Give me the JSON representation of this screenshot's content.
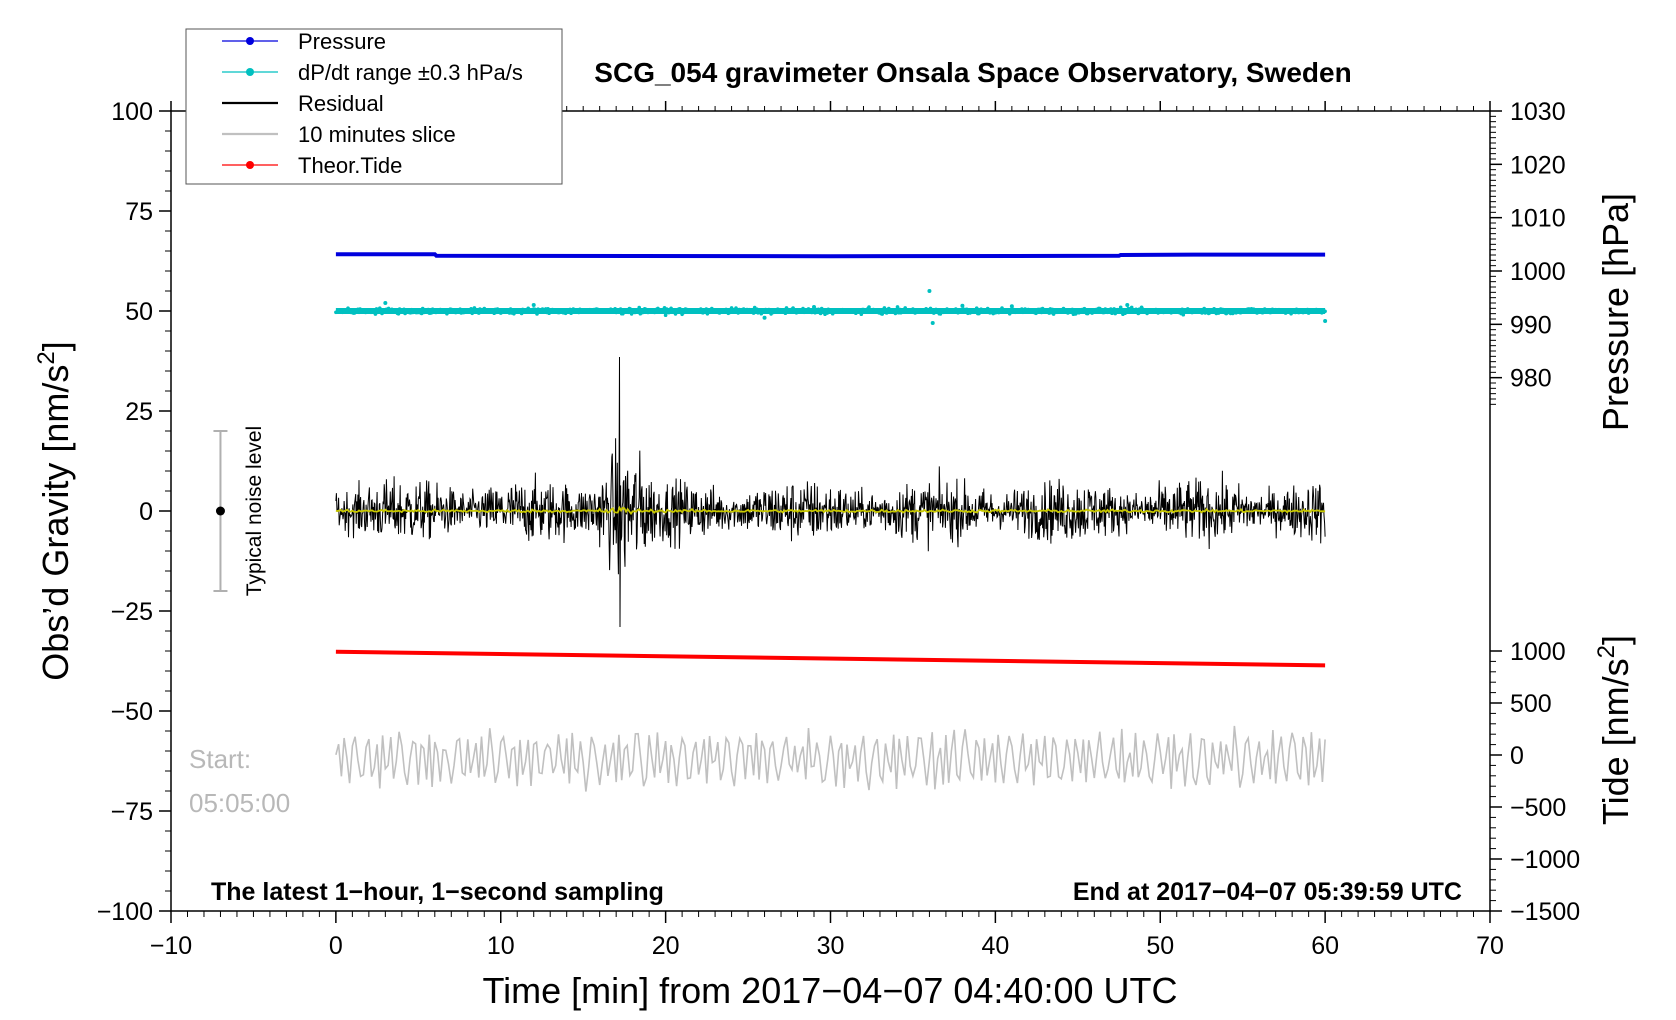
{
  "chart_data": {
    "type": "line",
    "title": "SCG_054 gravimeter Onsala Space Observatory, Sweden",
    "xlabel_prefix": "Time [min] from ",
    "xlabel_time": "2017−04−07 04:40:00 UTC",
    "ylabel_left": "Obs’d Gravity [nm/s",
    "ylabel_right_pressure": "Pressure [hPa]",
    "ylabel_right_tide": "Tide [nm/s",
    "unit_superscript": "2",
    "unit_close": "]",
    "xlim": [
      -10,
      70
    ],
    "ylim": [
      -100,
      100
    ],
    "x_ticks": [
      -10,
      0,
      10,
      20,
      30,
      40,
      50,
      60,
      70
    ],
    "x_tick_labels": [
      "−10",
      "0",
      "10",
      "20",
      "30",
      "40",
      "50",
      "60",
      "70"
    ],
    "y_ticks": [
      100,
      75,
      50,
      25,
      0,
      -25,
      -50,
      -75,
      -100
    ],
    "y_tick_labels": [
      "100",
      "75",
      "50",
      "25",
      "0",
      "−25",
      "−50",
      "−75",
      "−100"
    ],
    "pressure_axis": {
      "ticks": [
        1030,
        1020,
        1010,
        1000,
        990,
        980
      ],
      "tick_labels": [
        "1030",
        "1020",
        "1010",
        "1000",
        "990",
        "980"
      ],
      "top_value": 1030,
      "bottom_value": 970,
      "maps_to_left": [
        100,
        20
      ]
    },
    "tide_axis": {
      "ticks": [
        1000,
        500,
        0,
        -500,
        -1000,
        -1500
      ],
      "tick_labels": [
        "1000",
        "500",
        "0",
        "−500",
        "−1000",
        "−1500"
      ],
      "maps_to_left": [
        -35,
        -100
      ],
      "range": [
        1000,
        -1500
      ]
    },
    "series": [
      {
        "name": "Pressure",
        "color": "#0000dd",
        "x": [
          0,
          6,
          6.1,
          30,
          47.5,
          47.6,
          52,
          60
        ],
        "y": [
          64.2,
          64.2,
          63.8,
          63.7,
          63.8,
          64.0,
          64.1,
          64.1
        ]
      },
      {
        "name": "dP/dt range ±0.3 hPa/s",
        "color": "#00c0c0",
        "center": 50,
        "spread": 1.2
      },
      {
        "name": "Residual",
        "color": "#000000",
        "center": 0,
        "typical_amplitude": 6,
        "event_at_min": 17.2,
        "event_max": 38.5,
        "event_min": -29
      },
      {
        "name": "10 minutes slice",
        "color": "#c0c0c0",
        "center": -62,
        "amplitude": 8
      },
      {
        "name": "Theor.Tide",
        "color": "#ff0000",
        "x": [
          0,
          60
        ],
        "y": [
          -35.2,
          -38.6
        ]
      }
    ],
    "smoothed_residual_color": "#c8c800",
    "legend": [
      {
        "label": "Pressure",
        "color": "#0000dd",
        "marker": true
      },
      {
        "label": "dP/dt range ±0.3 hPa/s",
        "color": "#00c0c0",
        "marker": true
      },
      {
        "label": "Residual",
        "color": "#000000",
        "marker": false
      },
      {
        "label": "10 minutes slice",
        "color": "#c0c0c0",
        "marker": false
      },
      {
        "label": "Theor.Tide",
        "color": "#ff0000",
        "marker": true
      }
    ],
    "noise_level": {
      "label": "Typical noise level",
      "x": -7,
      "center": 0,
      "upper": 20,
      "lower": -20
    },
    "start_label": "Start:",
    "start_time": "05:05:00",
    "note_left": "The latest 1−hour, 1−second sampling",
    "note_right": "End at 2017−04−07 05:39:59 UTC"
  }
}
